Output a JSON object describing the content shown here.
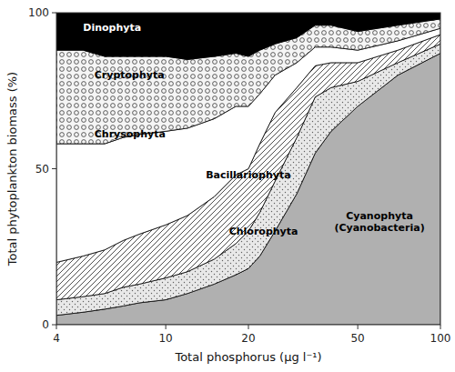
{
  "chart_data": {
    "type": "area",
    "stacked": true,
    "log": "x",
    "grid": false,
    "xlabel": "Total phosphorus (μg l⁻¹)",
    "ylabel": "Total phytoplankton biomass (%)",
    "x": [
      4,
      5,
      6,
      7,
      8,
      10,
      12,
      15,
      18,
      20,
      22,
      25,
      30,
      35,
      40,
      50,
      70,
      100
    ],
    "series": [
      {
        "color": "#b0b0b0",
        "values": [
          3,
          4,
          5,
          6,
          7,
          8,
          10,
          13,
          16,
          18,
          22,
          30,
          42,
          55,
          62,
          70,
          80,
          87
        ]
      },
      {
        "color": "#e8e8e8",
        "values": [
          5,
          5,
          5,
          6,
          6,
          7,
          7,
          8,
          10,
          12,
          14,
          16,
          18,
          18,
          14,
          8,
          4,
          3
        ]
      },
      {
        "color": "#ffffff",
        "values": [
          12,
          13,
          14,
          15,
          16,
          17,
          18,
          20,
          22,
          20,
          22,
          22,
          16,
          10,
          8,
          6,
          4,
          3
        ]
      },
      {
        "color": "#ffffff",
        "values": [
          38,
          36,
          34,
          33,
          32,
          30,
          28,
          25,
          22,
          20,
          16,
          12,
          8,
          6,
          5,
          4,
          3,
          2
        ]
      },
      {
        "color": "#f5f5f5",
        "values": [
          30,
          30,
          28,
          26,
          25,
          24,
          22,
          20,
          17,
          16,
          14,
          10,
          8,
          7,
          7,
          6,
          5,
          3
        ]
      },
      {
        "color": "#000000",
        "values": [
          12,
          12,
          14,
          14,
          14,
          14,
          15,
          14,
          13,
          14,
          12,
          10,
          8,
          4,
          4,
          6,
          4,
          2
        ]
      }
    ],
    "xlim": [
      4,
      100
    ],
    "ylim": [
      0,
      100
    ],
    "xticks": [
      4,
      10,
      20,
      50,
      100
    ],
    "yticks": [
      0,
      50,
      100
    ],
    "annotations": [
      {
        "text": "Dinophyta",
        "x": 5.0,
        "y": 97,
        "color": "#ffffff"
      },
      {
        "text": "Cryptophyta",
        "x": 5.5,
        "y": 82,
        "color": "#000000"
      },
      {
        "text": "Chrysophyta",
        "x": 5.5,
        "y": 63,
        "color": "#000000"
      },
      {
        "text": "Bacillariophyta",
        "x": 14,
        "y": 48,
        "color": "#000000"
      },
      {
        "text": "Chlorophyta",
        "x": 17,
        "y": 30,
        "color": "#000000"
      },
      {
        "text": "Cyanophyta\n(Cyanobacteria)",
        "x": 60,
        "y": 33,
        "color": "#000000"
      }
    ]
  }
}
